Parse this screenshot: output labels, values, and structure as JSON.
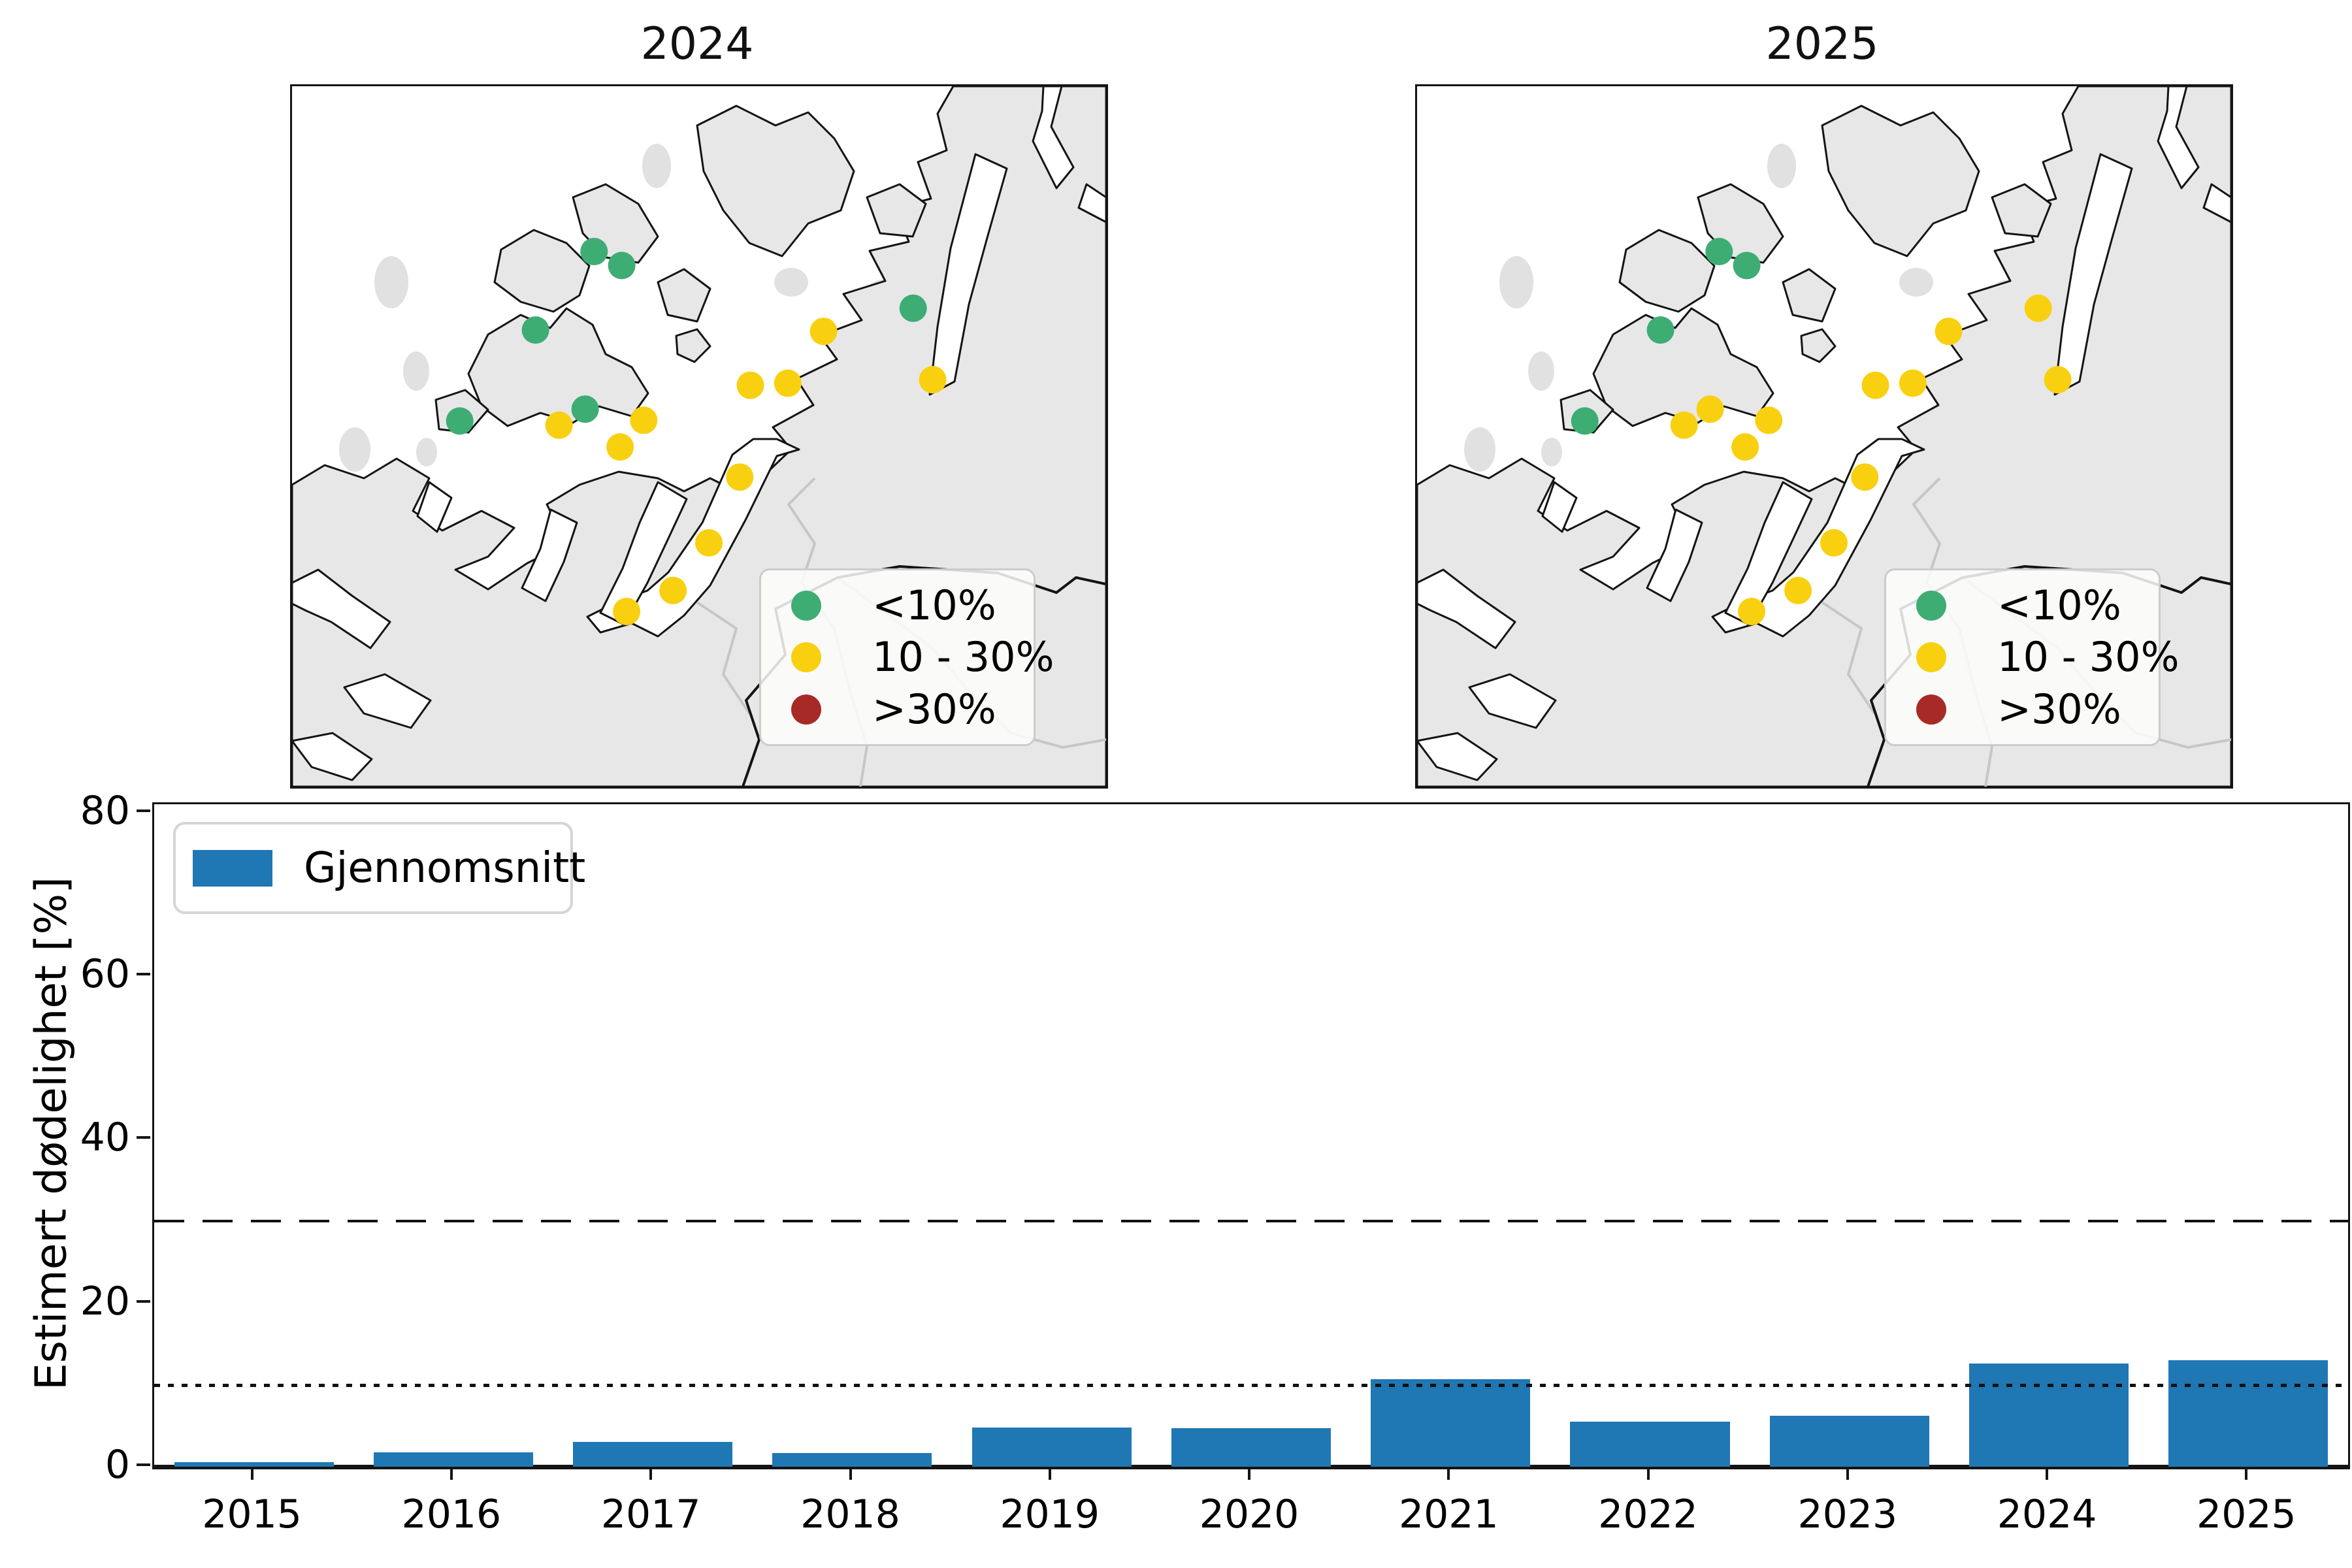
{
  "colors": {
    "green": "#3EAD74",
    "yellow": "#F8D010",
    "red": "#A82A26",
    "bar_blue": "#1F77B4",
    "land": "#E7E7E7",
    "islet": "#E1E1E1",
    "internal_border": "#C6C6C6",
    "coastline": "#141414"
  },
  "maps": [
    {
      "title": "2024",
      "legend": [
        {
          "label": "<10%",
          "color": "green"
        },
        {
          "label": "10 - 30%",
          "color": "yellow"
        },
        {
          "label": ">30%",
          "color": "red"
        }
      ],
      "points": [
        {
          "x": 0.371,
          "y": 0.236,
          "category": "green"
        },
        {
          "x": 0.405,
          "y": 0.256,
          "category": "green"
        },
        {
          "x": 0.299,
          "y": 0.348,
          "category": "green"
        },
        {
          "x": 0.763,
          "y": 0.317,
          "category": "green"
        },
        {
          "x": 0.36,
          "y": 0.461,
          "category": "green"
        },
        {
          "x": 0.206,
          "y": 0.478,
          "category": "green"
        },
        {
          "x": 0.653,
          "y": 0.35,
          "category": "yellow"
        },
        {
          "x": 0.563,
          "y": 0.427,
          "category": "yellow"
        },
        {
          "x": 0.609,
          "y": 0.424,
          "category": "yellow"
        },
        {
          "x": 0.787,
          "y": 0.419,
          "category": "yellow"
        },
        {
          "x": 0.328,
          "y": 0.484,
          "category": "yellow"
        },
        {
          "x": 0.432,
          "y": 0.477,
          "category": "yellow"
        },
        {
          "x": 0.403,
          "y": 0.515,
          "category": "yellow"
        },
        {
          "x": 0.55,
          "y": 0.558,
          "category": "yellow"
        },
        {
          "x": 0.512,
          "y": 0.652,
          "category": "yellow"
        },
        {
          "x": 0.468,
          "y": 0.72,
          "category": "yellow"
        },
        {
          "x": 0.411,
          "y": 0.75,
          "category": "yellow"
        }
      ]
    },
    {
      "title": "2025",
      "legend": [
        {
          "label": "<10%",
          "color": "green"
        },
        {
          "label": "10 - 30%",
          "color": "yellow"
        },
        {
          "label": ">30%",
          "color": "red"
        }
      ],
      "points": [
        {
          "x": 0.371,
          "y": 0.236,
          "category": "green"
        },
        {
          "x": 0.405,
          "y": 0.256,
          "category": "green"
        },
        {
          "x": 0.299,
          "y": 0.348,
          "category": "green"
        },
        {
          "x": 0.763,
          "y": 0.317,
          "category": "yellow"
        },
        {
          "x": 0.36,
          "y": 0.461,
          "category": "yellow"
        },
        {
          "x": 0.206,
          "y": 0.478,
          "category": "green"
        },
        {
          "x": 0.653,
          "y": 0.35,
          "category": "yellow"
        },
        {
          "x": 0.563,
          "y": 0.427,
          "category": "yellow"
        },
        {
          "x": 0.609,
          "y": 0.424,
          "category": "yellow"
        },
        {
          "x": 0.787,
          "y": 0.419,
          "category": "yellow"
        },
        {
          "x": 0.328,
          "y": 0.484,
          "category": "yellow"
        },
        {
          "x": 0.432,
          "y": 0.477,
          "category": "yellow"
        },
        {
          "x": 0.403,
          "y": 0.515,
          "category": "yellow"
        },
        {
          "x": 0.55,
          "y": 0.558,
          "category": "yellow"
        },
        {
          "x": 0.512,
          "y": 0.652,
          "category": "yellow"
        },
        {
          "x": 0.468,
          "y": 0.72,
          "category": "yellow"
        },
        {
          "x": 0.411,
          "y": 0.75,
          "category": "yellow"
        }
      ]
    }
  ],
  "chart_data": {
    "type": "bar",
    "categories": [
      "2015",
      "2016",
      "2017",
      "2018",
      "2019",
      "2020",
      "2021",
      "2022",
      "2023",
      "2024",
      "2025"
    ],
    "series": [
      {
        "name": "Gjennomsnitt",
        "values": [
          0.6,
          1.8,
          3.0,
          1.7,
          4.8,
          4.7,
          10.7,
          5.5,
          6.2,
          12.6,
          13.0
        ]
      }
    ],
    "title": "",
    "xlabel": "",
    "ylabel": "Estimert dødelighet [%]",
    "yticks": [
      0,
      20,
      40,
      60,
      80
    ],
    "ylim": [
      0,
      81
    ],
    "grid": false,
    "bar_color": "#1F77B4",
    "reference_lines": [
      {
        "value": 30,
        "style": "dashed"
      },
      {
        "value": 10,
        "style": "dotted"
      }
    ],
    "legend": {
      "label": "Gjennomsnitt",
      "position": "upper left"
    }
  }
}
